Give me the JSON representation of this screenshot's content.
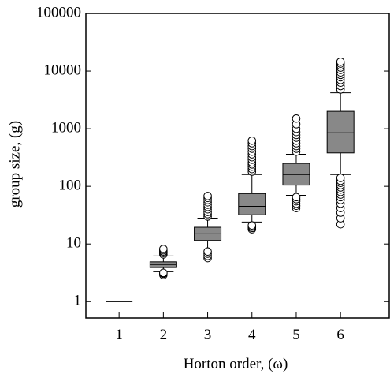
{
  "chart_data": {
    "type": "box",
    "xlabel": "Horton order, (ω)",
    "ylabel": "group size, (g)",
    "x_ticks": [
      {
        "value": 1,
        "label": "1"
      },
      {
        "value": 2,
        "label": "2"
      },
      {
        "value": 3,
        "label": "3"
      },
      {
        "value": 4,
        "label": "4"
      },
      {
        "value": 5,
        "label": "5"
      },
      {
        "value": 6,
        "label": "6"
      }
    ],
    "y_ticks": [
      {
        "value": 1,
        "label": "1"
      },
      {
        "value": 10,
        "label": "10"
      },
      {
        "value": 100,
        "label": "100"
      },
      {
        "value": 1000,
        "label": "1000"
      },
      {
        "value": 10000,
        "label": "10000"
      },
      {
        "value": 100000,
        "label": "100000"
      }
    ],
    "y_scale": "log",
    "xlim": [
      0.25,
      7.1
    ],
    "ylim": [
      0.52,
      100000
    ],
    "grid": false,
    "colors": {
      "box_fill": "#888888",
      "line": "#000000",
      "outlier_fill": "#ffffff"
    },
    "boxes": [
      {
        "order": 1,
        "q1": 1,
        "median": 1,
        "q3": 1,
        "whisker_low": 1,
        "whisker_high": 1,
        "outliers": []
      },
      {
        "order": 2,
        "q1": 3.9,
        "median": 4.4,
        "q3": 4.9,
        "whisker_low": 3.3,
        "whisker_high": 6.2,
        "outliers": [
          2.9,
          3.05,
          3.15,
          6.6,
          7.0,
          7.4,
          7.8,
          8.2
        ]
      },
      {
        "order": 3,
        "q1": 11.5,
        "median": 15,
        "q3": 19.5,
        "whisker_low": 8.2,
        "whisker_high": 28,
        "outliers": [
          5.7,
          6.2,
          6.8,
          7.4,
          30,
          33,
          36,
          40,
          44,
          48,
          53,
          58,
          63,
          68
        ]
      },
      {
        "order": 4,
        "q1": 32,
        "median": 45,
        "q3": 75,
        "whisker_low": 24,
        "whisker_high": 160,
        "outliers": [
          18,
          19,
          20,
          21,
          180,
          200,
          220,
          240,
          260,
          290,
          320,
          360,
          400,
          450,
          500,
          560,
          620
        ]
      },
      {
        "order": 5,
        "q1": 105,
        "median": 160,
        "q3": 250,
        "whisker_low": 70,
        "whisker_high": 360,
        "outliers": [
          42,
          46,
          50,
          55,
          60,
          65,
          400,
          450,
          500,
          560,
          620,
          700,
          780,
          880,
          1000,
          1200,
          1500
        ]
      },
      {
        "order": 6,
        "q1": 380,
        "median": 850,
        "q3": 2000,
        "whisker_low": 160,
        "whisker_high": 4200,
        "outliers": [
          22,
          28,
          35,
          42,
          50,
          58,
          65,
          72,
          80,
          88,
          96,
          105,
          115,
          125,
          140,
          4800,
          5500,
          6300,
          7000,
          7800,
          8600,
          9500,
          10500,
          11500,
          12500,
          13500,
          14500
        ]
      }
    ]
  }
}
